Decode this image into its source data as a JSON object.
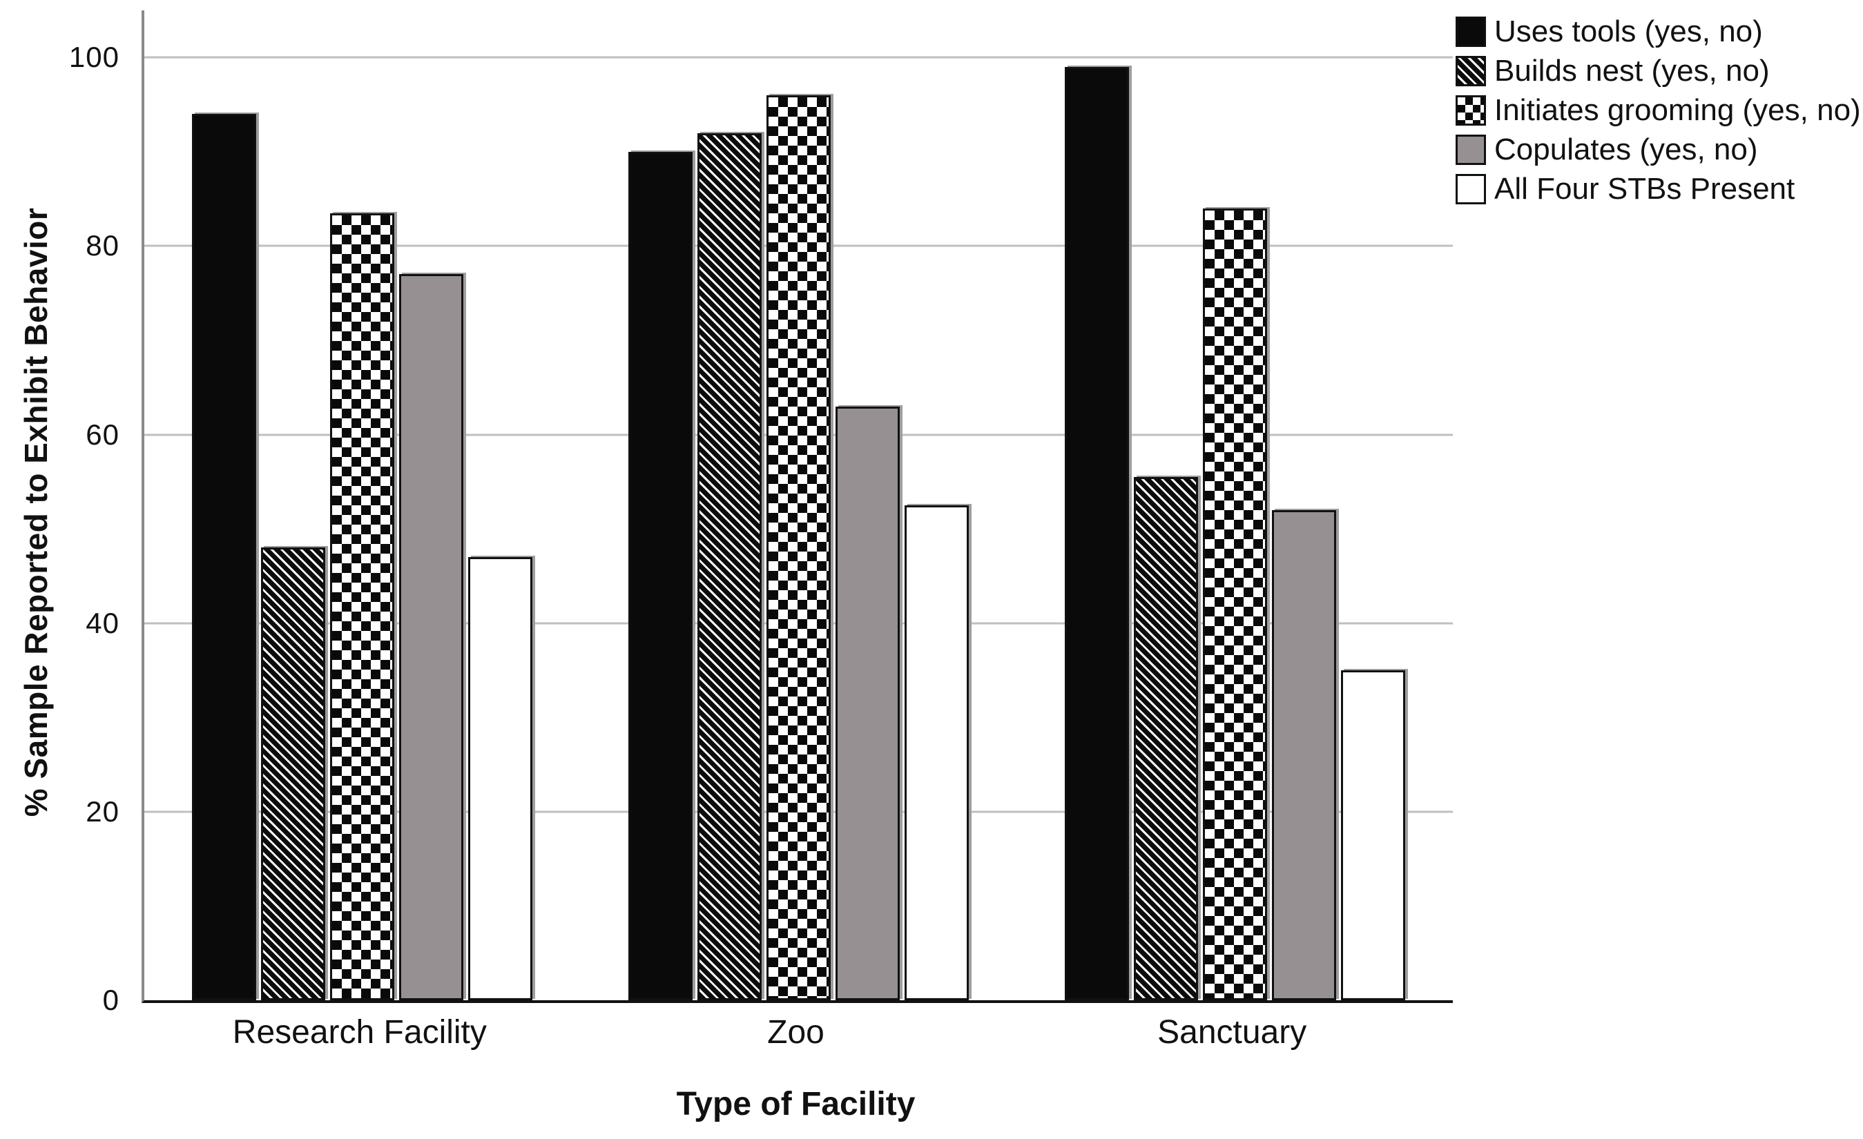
{
  "chart_data": {
    "type": "bar",
    "title": "",
    "xlabel": "Type of Facility",
    "ylabel": "% Sample Reported to Exhibit Behavior",
    "categories": [
      "Research Facility",
      "Zoo",
      "Sanctuary"
    ],
    "series": [
      {
        "name": "Uses tools (yes, no)",
        "pattern": "solid-black",
        "values": [
          94,
          90,
          99
        ]
      },
      {
        "name": "Builds nest (yes, no)",
        "pattern": "diagonal-stripes",
        "values": [
          48,
          92,
          55.5
        ]
      },
      {
        "name": "Initiates grooming (yes, no)",
        "pattern": "checkerboard",
        "values": [
          83.5,
          96,
          84
        ]
      },
      {
        "name": "Copulates (yes, no)",
        "pattern": "solid-gray",
        "values": [
          77,
          63,
          52
        ]
      },
      {
        "name": "All Four STBs Present",
        "pattern": "solid-white",
        "values": [
          47,
          52.5,
          35
        ]
      }
    ],
    "yticks": [
      0,
      20,
      40,
      60,
      80,
      100
    ],
    "ylim": [
      0,
      105
    ],
    "grid": "horizontal-light-gray",
    "legend_position": "top-right"
  },
  "colors": {
    "bar_black": "#0a0a0a",
    "bar_gray": "#969092",
    "bar_white": "#ffffff",
    "bar_border": "#111111",
    "bar_shadow": "#9e9e9e",
    "gridline": "#bfbfbf",
    "axis_left": "#8a8a8a",
    "axis_bottom": "#111111",
    "text": "#111111",
    "background": "#ffffff"
  }
}
